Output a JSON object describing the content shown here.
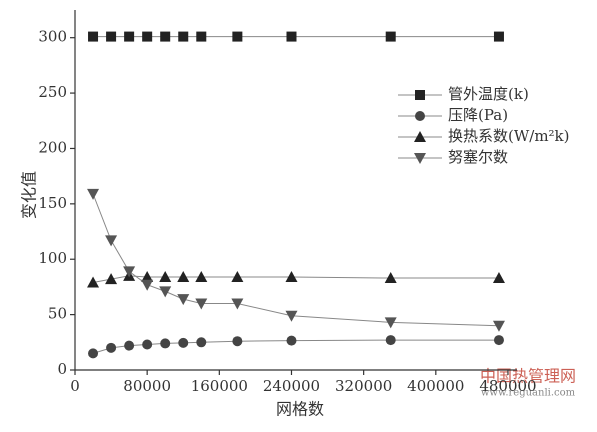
{
  "chart_data": {
    "type": "line",
    "x_label": "网格数",
    "y_label": "变化值",
    "x": [
      20000,
      40000,
      60000,
      80000,
      100000,
      120000,
      140000,
      180000,
      240000,
      350000,
      470000
    ],
    "series": [
      {
        "name": "管外温度(k)",
        "color": "#222222",
        "marker": "square",
        "values": [
          301,
          301,
          301,
          301,
          301,
          301,
          301,
          301,
          301,
          301,
          301
        ]
      },
      {
        "name": "压降(Pa)",
        "color": "#444444",
        "marker": "circle",
        "values": [
          15,
          20,
          22,
          23,
          24,
          24.5,
          25,
          26,
          26.5,
          27,
          27
        ]
      },
      {
        "name": "换热系数(W/m²k)",
        "color": "#222222",
        "marker": "triangle-up",
        "values": [
          79,
          82,
          85,
          84,
          84,
          84,
          84,
          84,
          84,
          83,
          83
        ]
      },
      {
        "name": "努塞尔数",
        "color": "#555555",
        "marker": "triangle-down",
        "values": [
          159,
          117,
          89,
          77,
          71,
          64,
          60,
          60,
          49,
          43,
          40
        ]
      }
    ],
    "xlim": [
      0,
      490000
    ],
    "xticks": [
      0,
      80000,
      160000,
      240000,
      320000,
      400000,
      480000
    ],
    "ylim": [
      0,
      325
    ],
    "yticks": [
      0,
      50,
      100,
      150,
      200,
      250,
      300
    ],
    "grid": false,
    "legend": "right"
  },
  "watermark": {
    "name": "中国热管理网",
    "url": "www.reguanli.com"
  }
}
